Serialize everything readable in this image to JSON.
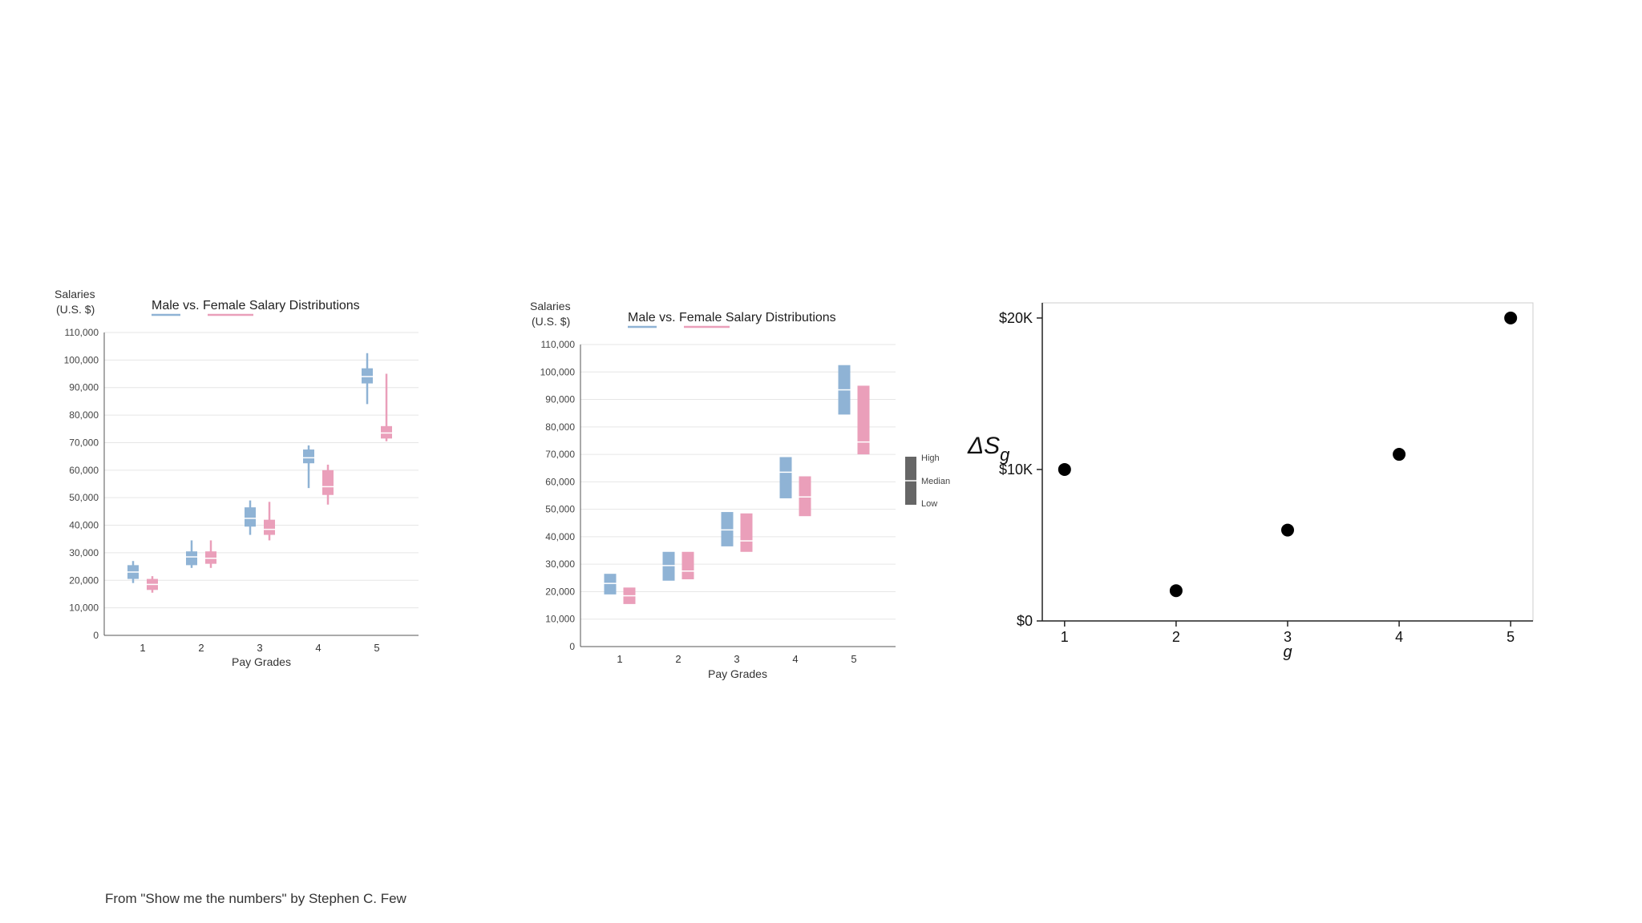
{
  "caption": "From \"Show me the numbers\" by Stephen C. Few",
  "colors": {
    "male": "#8fb3d5",
    "female": "#ea9fba",
    "legend": "#666666",
    "axis": "#555555",
    "grid": "#e6e6e6",
    "dot": "#000000"
  },
  "chart_data": [
    {
      "type": "box",
      "title_parts": [
        "Male",
        " vs. ",
        "Female",
        " Salary Distributions"
      ],
      "ylabel_lines": [
        "Salaries",
        "(U.S. $)"
      ],
      "xlabel": "Pay Grades",
      "categories": [
        "1",
        "2",
        "3",
        "4",
        "5"
      ],
      "yticks": [
        "0",
        "10,000",
        "20,000",
        "30,000",
        "40,000",
        "50,000",
        "60,000",
        "70,000",
        "80,000",
        "90,000",
        "100,000",
        "110,000"
      ],
      "ylim": [
        0,
        110000
      ],
      "series": [
        {
          "name": "Male",
          "color_key": "male",
          "boxes": [
            {
              "low": 19000,
              "q1": 20500,
              "median": 23000,
              "q3": 25500,
              "high": 27000
            },
            {
              "low": 24500,
              "q1": 25500,
              "median": 28500,
              "q3": 30500,
              "high": 34500
            },
            {
              "low": 36500,
              "q1": 39500,
              "median": 42500,
              "q3": 46500,
              "high": 49000
            },
            {
              "low": 53500,
              "q1": 62500,
              "median": 64500,
              "q3": 67500,
              "high": 69000
            },
            {
              "low": 84000,
              "q1": 91500,
              "median": 94000,
              "q3": 97000,
              "high": 102500
            }
          ]
        },
        {
          "name": "Female",
          "color_key": "female",
          "boxes": [
            {
              "low": 15500,
              "q1": 16500,
              "median": 18500,
              "q3": 20500,
              "high": 21500
            },
            {
              "low": 24500,
              "q1": 26000,
              "median": 28000,
              "q3": 30500,
              "high": 34500
            },
            {
              "low": 34500,
              "q1": 36500,
              "median": 38500,
              "q3": 42000,
              "high": 48500
            },
            {
              "low": 47500,
              "q1": 51000,
              "median": 54000,
              "q3": 60000,
              "high": 62000
            },
            {
              "low": 70500,
              "q1": 71500,
              "median": 73500,
              "q3": 76000,
              "high": 95000
            }
          ]
        }
      ]
    },
    {
      "type": "range",
      "title_parts": [
        "Male",
        " vs. ",
        "Female",
        " Salary Distributions"
      ],
      "ylabel_lines": [
        "Salaries",
        "(U.S. $)"
      ],
      "xlabel": "Pay Grades",
      "categories": [
        "1",
        "2",
        "3",
        "4",
        "5"
      ],
      "yticks": [
        "0",
        "10,000",
        "20,000",
        "30,000",
        "40,000",
        "50,000",
        "60,000",
        "70,000",
        "80,000",
        "90,000",
        "100,000",
        "110,000"
      ],
      "ylim": [
        0,
        110000
      ],
      "legend": {
        "labels": [
          "High",
          "Median",
          "Low"
        ],
        "placement": "right"
      },
      "series": [
        {
          "name": "Male",
          "color_key": "male",
          "ranges": [
            {
              "low": 19000,
              "median": 23000,
              "high": 26500
            },
            {
              "low": 24000,
              "median": 29500,
              "high": 34500
            },
            {
              "low": 36500,
              "median": 42500,
              "high": 49000
            },
            {
              "low": 54000,
              "median": 63500,
              "high": 69000
            },
            {
              "low": 84500,
              "median": 93500,
              "high": 102500
            }
          ]
        },
        {
          "name": "Female",
          "color_key": "female",
          "ranges": [
            {
              "low": 15500,
              "median": 18500,
              "high": 21500
            },
            {
              "low": 24500,
              "median": 27500,
              "high": 34500
            },
            {
              "low": 34500,
              "median": 38500,
              "high": 48500
            },
            {
              "low": 47500,
              "median": 54500,
              "high": 62000
            },
            {
              "low": 70000,
              "median": 74500,
              "high": 95000
            }
          ]
        }
      ]
    },
    {
      "type": "scatter",
      "ylabel_base": "ΔS",
      "ylabel_sub": "g",
      "xlabel": "g",
      "x": [
        1,
        2,
        3,
        4,
        5
      ],
      "y": [
        10,
        2,
        6,
        11,
        20
      ],
      "xticks": [
        "1",
        "2",
        "3",
        "4",
        "5"
      ],
      "yticks": [
        "$0",
        "$10K",
        "$20K"
      ],
      "ytick_values": [
        0,
        10,
        20
      ],
      "xlim": [
        0.8,
        5.2
      ],
      "ylim": [
        0,
        21
      ],
      "grid": false
    }
  ]
}
